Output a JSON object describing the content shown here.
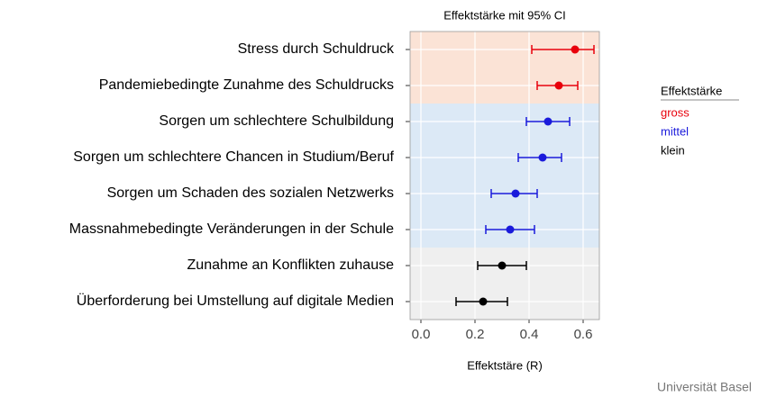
{
  "chart_data": {
    "type": "forest",
    "title": "Effektstärke mit 95% CI",
    "xlabel": "Effektstäre (R)",
    "legend_title": "Effektstärke",
    "footer": "Universität Basel",
    "xlim": [
      -0.04,
      0.66
    ],
    "xticks": [
      {
        "value": 0,
        "label": "0.0"
      },
      0.2,
      0.4,
      0.6
    ],
    "grid": true,
    "series": [
      {
        "name": "gross",
        "color": "#e8000b",
        "band_color": "#fbe3d6",
        "categories": [
          "Stress durch Schuldruck",
          "Pandemiebedingte Zunahme des Schuldrucks"
        ],
        "values": [
          0.57,
          0.51
        ],
        "lower": [
          0.41,
          0.43
        ],
        "upper": [
          0.64,
          0.58
        ]
      },
      {
        "name": "mittel",
        "color": "#1a1adb",
        "band_color": "#dce9f6",
        "categories": [
          "Sorgen um schlechtere Schulbildung",
          "Sorgen um schlechtere Chancen in Studium/Beruf",
          "Sorgen um Schaden des sozialen Netzwerks",
          "Massnahmebedingte Veränderungen in der Schule"
        ],
        "values": [
          0.47,
          0.45,
          0.35,
          0.33
        ],
        "lower": [
          0.39,
          0.36,
          0.26,
          0.24
        ],
        "upper": [
          0.55,
          0.52,
          0.43,
          0.42
        ]
      },
      {
        "name": "klein",
        "color": "#000000",
        "band_color": "#efefef",
        "categories": [
          "Zunahme an Konflikten zuhause",
          "Überforderung bei Umstellung auf digitale Medien"
        ],
        "values": [
          0.3,
          0.23
        ],
        "lower": [
          0.21,
          0.13
        ],
        "upper": [
          0.39,
          0.32
        ]
      }
    ]
  }
}
